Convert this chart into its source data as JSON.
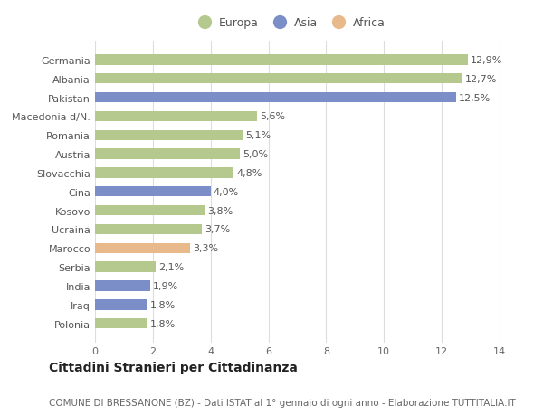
{
  "categories": [
    "Polonia",
    "Iraq",
    "India",
    "Serbia",
    "Marocco",
    "Ucraina",
    "Kosovo",
    "Cina",
    "Slovacchia",
    "Austria",
    "Romania",
    "Macedonia d/N.",
    "Pakistan",
    "Albania",
    "Germania"
  ],
  "values": [
    1.8,
    1.8,
    1.9,
    2.1,
    3.3,
    3.7,
    3.8,
    4.0,
    4.8,
    5.0,
    5.1,
    5.6,
    12.5,
    12.7,
    12.9
  ],
  "labels": [
    "1,8%",
    "1,8%",
    "1,9%",
    "2,1%",
    "3,3%",
    "3,7%",
    "3,8%",
    "4,0%",
    "4,8%",
    "5,0%",
    "5,1%",
    "5,6%",
    "12,5%",
    "12,7%",
    "12,9%"
  ],
  "colors": [
    "#b5c98e",
    "#7b8ec8",
    "#7b8ec8",
    "#b5c98e",
    "#e8b98a",
    "#b5c98e",
    "#b5c98e",
    "#7b8ec8",
    "#b5c98e",
    "#b5c98e",
    "#b5c98e",
    "#b5c98e",
    "#7b8ec8",
    "#b5c98e",
    "#b5c98e"
  ],
  "legend_labels": [
    "Europa",
    "Asia",
    "Africa"
  ],
  "legend_colors": [
    "#b5c98e",
    "#7b8ec8",
    "#e8b98a"
  ],
  "title": "Cittadini Stranieri per Cittadinanza",
  "subtitle": "COMUNE DI BRESSANONE (BZ) - Dati ISTAT al 1° gennaio di ogni anno - Elaborazione TUTTITALIA.IT",
  "xlim": [
    0,
    14
  ],
  "xticks": [
    0,
    2,
    4,
    6,
    8,
    10,
    12,
    14
  ],
  "background_color": "#ffffff",
  "bar_height": 0.55,
  "grid_color": "#dddddd",
  "title_fontsize": 10,
  "subtitle_fontsize": 7.5,
  "label_fontsize": 8,
  "tick_fontsize": 8,
  "legend_fontsize": 9
}
